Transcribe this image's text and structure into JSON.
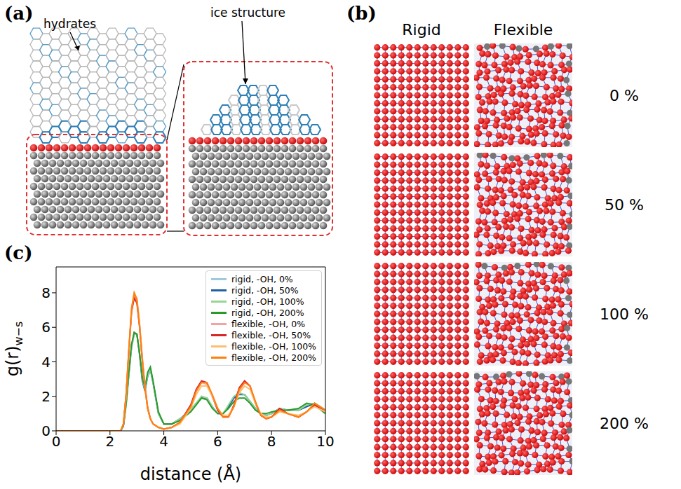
{
  "panel_a": {
    "letter": "(a)",
    "callouts": [
      "hydrates",
      "ice structure"
    ]
  },
  "panel_b": {
    "letter": "(b)",
    "columns": [
      "Rigid",
      "Flexible"
    ],
    "rows": [
      "0 %",
      "50 %",
      "100 %",
      "200 %"
    ]
  },
  "chart_data": {
    "letter": "(c)",
    "type": "line",
    "x_label": "distance (Å)",
    "y_label": "g(r)",
    "y_label_subscript": "w−s",
    "xlim": [
      0,
      10
    ],
    "xticks": [
      0,
      2,
      4,
      6,
      8,
      10
    ],
    "ylim": [
      0,
      9.5
    ],
    "yticks": [
      0,
      2,
      4,
      6,
      8
    ],
    "legend": "upper right",
    "grid": false,
    "x": [
      0,
      1,
      2,
      2.4,
      2.5,
      2.6,
      2.7,
      2.8,
      2.9,
      3.0,
      3.1,
      3.2,
      3.3,
      3.4,
      3.5,
      3.6,
      3.8,
      4.0,
      4.3,
      4.6,
      5.0,
      5.2,
      5.4,
      5.6,
      5.8,
      6.0,
      6.2,
      6.4,
      6.6,
      6.8,
      7.0,
      7.2,
      7.4,
      7.6,
      7.8,
      8.0,
      8.3,
      8.6,
      9.0,
      9.3,
      9.6,
      10
    ],
    "series": [
      {
        "name": "rigid, -OH, 0%",
        "color": "#9ecae1",
        "values": [
          0,
          0,
          0,
          0,
          0.3,
          1.5,
          3.2,
          4.8,
          5.6,
          5.6,
          4.5,
          3.0,
          2.4,
          3.1,
          3.5,
          2.8,
          1.0,
          0.4,
          0.4,
          0.7,
          1.2,
          1.6,
          2.0,
          1.9,
          1.4,
          1.0,
          1.0,
          1.4,
          1.9,
          2.2,
          2.1,
          1.7,
          1.3,
          1.0,
          0.9,
          1.0,
          1.3,
          1.2,
          1.2,
          1.4,
          1.6,
          1.2
        ]
      },
      {
        "name": "rigid, -OH, 50%",
        "color": "#1f5fa8",
        "values": [
          0,
          0,
          0,
          0,
          0.3,
          1.6,
          3.3,
          4.9,
          5.7,
          5.6,
          4.4,
          2.9,
          2.3,
          3.2,
          3.6,
          2.8,
          1.0,
          0.4,
          0.4,
          0.7,
          1.2,
          1.6,
          1.9,
          1.9,
          1.4,
          1.0,
          1.0,
          1.4,
          1.9,
          2.1,
          2.1,
          1.7,
          1.3,
          1.0,
          0.9,
          1.0,
          1.3,
          1.2,
          1.2,
          1.4,
          1.6,
          1.2
        ]
      },
      {
        "name": "rigid, -OH, 100%",
        "color": "#98d594",
        "values": [
          0,
          0,
          0,
          0,
          0.3,
          1.5,
          3.2,
          4.8,
          5.6,
          5.6,
          4.5,
          3.0,
          2.4,
          3.2,
          3.6,
          2.8,
          1.0,
          0.4,
          0.4,
          0.7,
          1.2,
          1.6,
          2.0,
          1.9,
          1.4,
          1.0,
          1.0,
          1.5,
          2.0,
          2.2,
          2.1,
          1.7,
          1.3,
          1.0,
          0.9,
          1.0,
          1.3,
          1.2,
          1.2,
          1.5,
          1.6,
          1.2
        ]
      },
      {
        "name": "rigid, -OH, 200%",
        "color": "#2a9a2a",
        "values": [
          0,
          0,
          0,
          0,
          0.3,
          1.6,
          3.4,
          5.0,
          5.7,
          5.6,
          4.5,
          3.1,
          2.5,
          3.4,
          3.7,
          2.9,
          1.1,
          0.4,
          0.4,
          0.6,
          1.1,
          1.5,
          1.9,
          1.8,
          1.3,
          1.0,
          1.0,
          1.3,
          1.7,
          1.9,
          1.9,
          1.6,
          1.2,
          1.0,
          1.0,
          1.1,
          1.2,
          1.2,
          1.3,
          1.6,
          1.5,
          1.0
        ]
      },
      {
        "name": "flexible, -OH, 0%",
        "color": "#f4a3a3",
        "values": [
          0,
          0,
          0,
          0,
          0.4,
          2.0,
          4.5,
          6.8,
          7.8,
          7.6,
          6.2,
          4.3,
          2.6,
          1.4,
          0.7,
          0.4,
          0.2,
          0.1,
          0.2,
          0.5,
          1.5,
          2.3,
          2.8,
          2.7,
          2.0,
          1.2,
          0.8,
          0.8,
          1.4,
          2.3,
          2.8,
          2.6,
          1.7,
          0.9,
          0.7,
          0.8,
          1.2,
          1.0,
          0.8,
          1.1,
          1.5,
          1.1
        ]
      },
      {
        "name": "flexible, -OH, 50%",
        "color": "#d62728",
        "values": [
          0,
          0,
          0,
          0,
          0.4,
          2.1,
          4.6,
          6.9,
          7.7,
          7.4,
          6.0,
          4.1,
          2.5,
          1.3,
          0.7,
          0.4,
          0.2,
          0.1,
          0.2,
          0.5,
          1.5,
          2.4,
          2.9,
          2.8,
          2.0,
          1.2,
          0.8,
          0.8,
          1.5,
          2.5,
          2.9,
          2.6,
          1.6,
          0.9,
          0.7,
          0.8,
          1.3,
          1.0,
          0.8,
          1.1,
          1.5,
          1.1
        ]
      },
      {
        "name": "flexible, -OH, 100%",
        "color": "#fdbf6f",
        "values": [
          0,
          0,
          0,
          0,
          0.4,
          2.0,
          4.6,
          7.0,
          8.0,
          7.7,
          6.2,
          4.2,
          2.5,
          1.3,
          0.7,
          0.4,
          0.2,
          0.1,
          0.2,
          0.4,
          1.3,
          2.1,
          2.6,
          2.6,
          2.0,
          1.3,
          0.9,
          0.9,
          1.4,
          2.2,
          2.6,
          2.4,
          1.6,
          1.0,
          0.8,
          0.8,
          1.1,
          1.0,
          0.9,
          1.1,
          1.4,
          1.1
        ]
      },
      {
        "name": "flexible, -OH, 200%",
        "color": "#ff7f0e",
        "values": [
          0,
          0,
          0,
          0,
          0.4,
          2.1,
          4.7,
          7.1,
          8.0,
          7.6,
          6.1,
          4.1,
          2.5,
          1.3,
          0.7,
          0.4,
          0.2,
          0.1,
          0.2,
          0.5,
          1.4,
          2.3,
          2.8,
          2.8,
          2.1,
          1.3,
          0.8,
          0.8,
          1.4,
          2.4,
          2.8,
          2.6,
          1.7,
          0.9,
          0.7,
          0.8,
          1.2,
          1.0,
          0.8,
          1.1,
          1.6,
          1.2
        ]
      }
    ]
  }
}
